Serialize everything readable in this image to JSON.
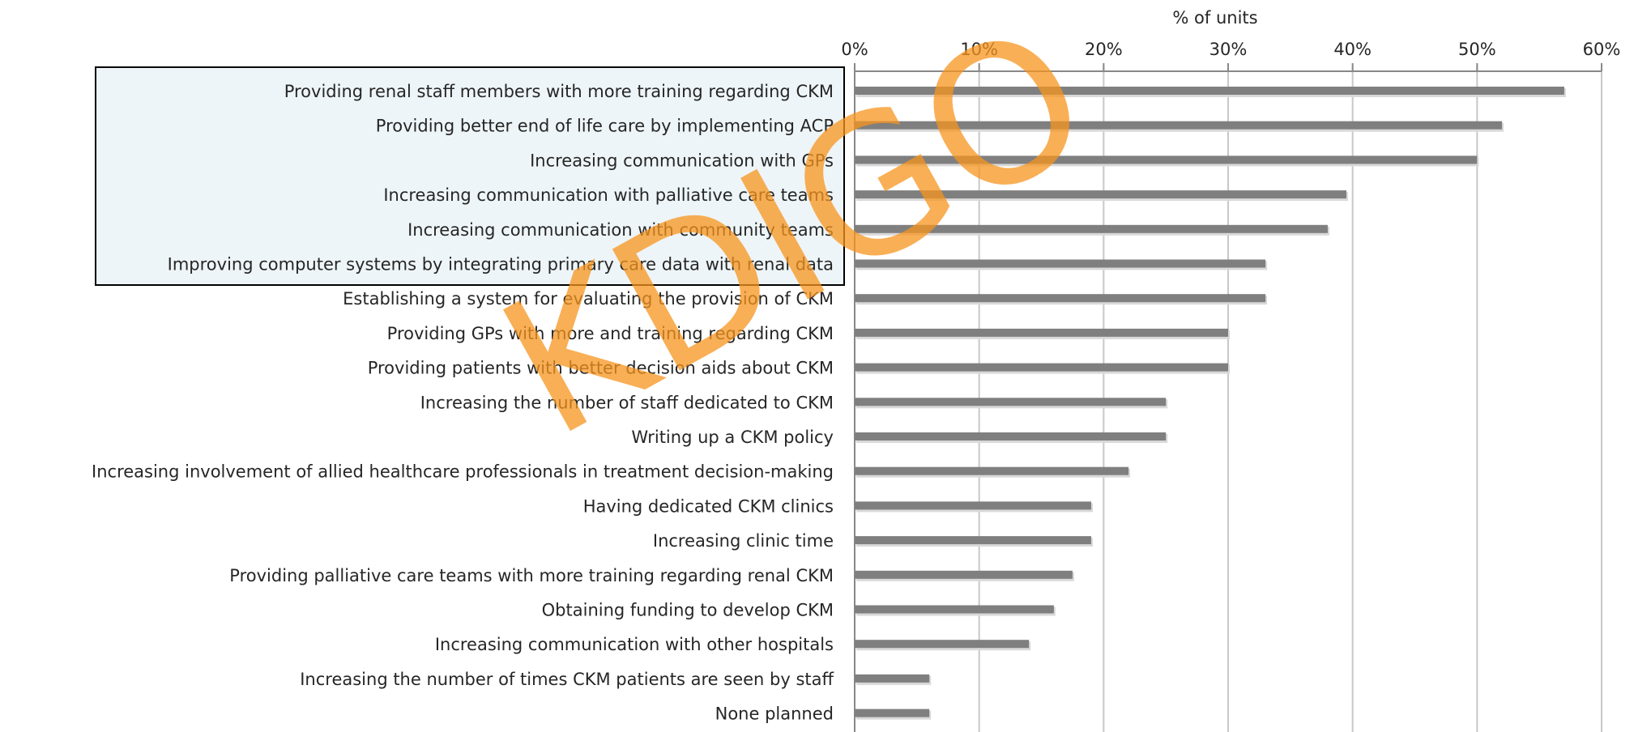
{
  "chart_data": {
    "type": "barh",
    "xlabel": "% of units",
    "categories": [
      "Providing renal staff members with more training regarding CKM",
      "Providing better end of life care by implementing ACP",
      "Increasing communication with GPs",
      "Increasing communication with palliative care teams",
      "Increasing communication with community teams",
      "Improving computer systems by integrating primary care data with renal data",
      "Establishing a system for evaluating the provision of CKM",
      "Providing GPs with more and training regarding CKM",
      "Providing patients with better decision aids about CKM",
      "Increasing the number of staff dedicated to CKM",
      "Writing up a CKM policy",
      "Increasing involvement of allied healthcare professionals in treatment decision-making",
      "Having dedicated CKM clinics",
      "Increasing clinic time",
      "Providing palliative care teams with more training regarding renal CKM",
      "Obtaining funding to develop CKM",
      "Increasing communication with other hospitals",
      "Increasing the number of times CKM patients are seen by staff",
      "None planned"
    ],
    "values": [
      57,
      52,
      50,
      39.5,
      38,
      33,
      33,
      30,
      30,
      25,
      25,
      22,
      19,
      19,
      17.5,
      16,
      14,
      6,
      6
    ],
    "color": "#7f7f7f",
    "xlim": [
      0,
      60
    ],
    "xticks": [
      {
        "value": 0,
        "label": "0%"
      },
      {
        "value": 10,
        "label": "10%"
      },
      {
        "value": 20,
        "label": "20%"
      },
      {
        "value": 30,
        "label": "30%"
      },
      {
        "value": 40,
        "label": "40%"
      },
      {
        "value": 50,
        "label": "50%"
      },
      {
        "value": 60,
        "label": "60%"
      }
    ],
    "grid": true,
    "watermark": "KDIGO"
  }
}
